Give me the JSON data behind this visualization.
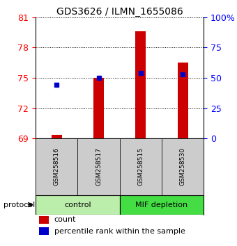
{
  "title": "GDS3626 / ILMN_1655086",
  "samples": [
    "GSM258516",
    "GSM258517",
    "GSM258515",
    "GSM258530"
  ],
  "bar_base": 69,
  "bar_tops": [
    69.35,
    75.0,
    79.6,
    76.5
  ],
  "percentile_ranks": [
    74.3,
    75.0,
    75.5,
    75.35
  ],
  "ylim_left": [
    69,
    81
  ],
  "ylim_right": [
    0,
    100
  ],
  "yticks_left": [
    69,
    72,
    75,
    78,
    81
  ],
  "yticks_right": [
    0,
    25,
    50,
    75,
    100
  ],
  "ytick_labels_right": [
    "0",
    "25",
    "50",
    "75",
    "100%"
  ],
  "bar_color": "#cc0000",
  "dot_color": "#0000cc",
  "protocol_groups": [
    {
      "label": "control",
      "indices": [
        0,
        1
      ],
      "color": "#bbeeaa"
    },
    {
      "label": "MIF depletion",
      "indices": [
        2,
        3
      ],
      "color": "#44dd44"
    }
  ],
  "legend_count_color": "#cc0000",
  "legend_pct_color": "#0000cc",
  "sample_box_color": "#cccccc",
  "protocol_label": "protocol",
  "bar_width": 0.25
}
